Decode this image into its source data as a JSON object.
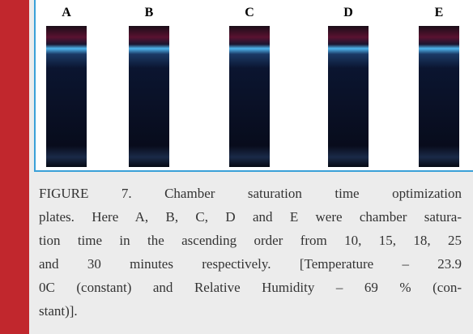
{
  "figure": {
    "plate_labels": [
      "A",
      "B",
      "C",
      "D",
      "E"
    ],
    "caption_lines": [
      "FIGURE 7. Chamber saturation time optimization",
      "plates. Here A, B, C, D and E were chamber satura-",
      "tion time in the ascending order from 10, 15, 18, 25",
      "and 30 minutes respectively. [Temperature – 23.9",
      "0C (constant) and Relative Humidity – 69 % (con-",
      "stant)]."
    ]
  }
}
